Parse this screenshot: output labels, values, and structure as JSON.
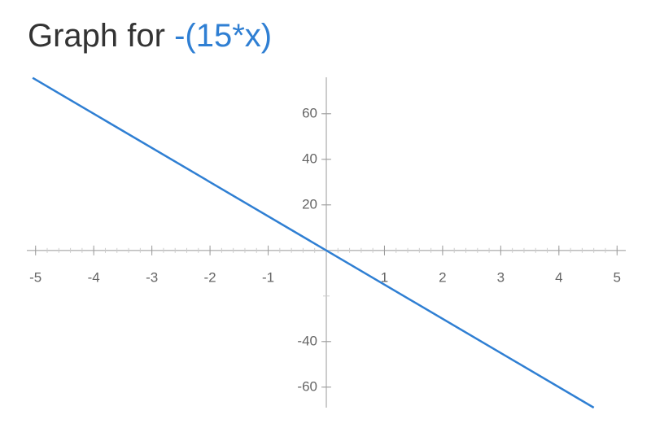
{
  "chart_data": {
    "type": "line",
    "title": "Graph for ",
    "title_expression": "-(15*x)",
    "x": [
      -5.05,
      4.6
    ],
    "values": [
      75.75,
      -69
    ],
    "color": "#2f7fd3",
    "xlim": [
      -5.15,
      5.15
    ],
    "ylim": [
      -69,
      76
    ],
    "xticks": [
      -5,
      -4,
      -3,
      -2,
      -1,
      1,
      2,
      3,
      4,
      5
    ],
    "yticks": [
      -60,
      -40,
      20,
      40,
      60
    ]
  }
}
